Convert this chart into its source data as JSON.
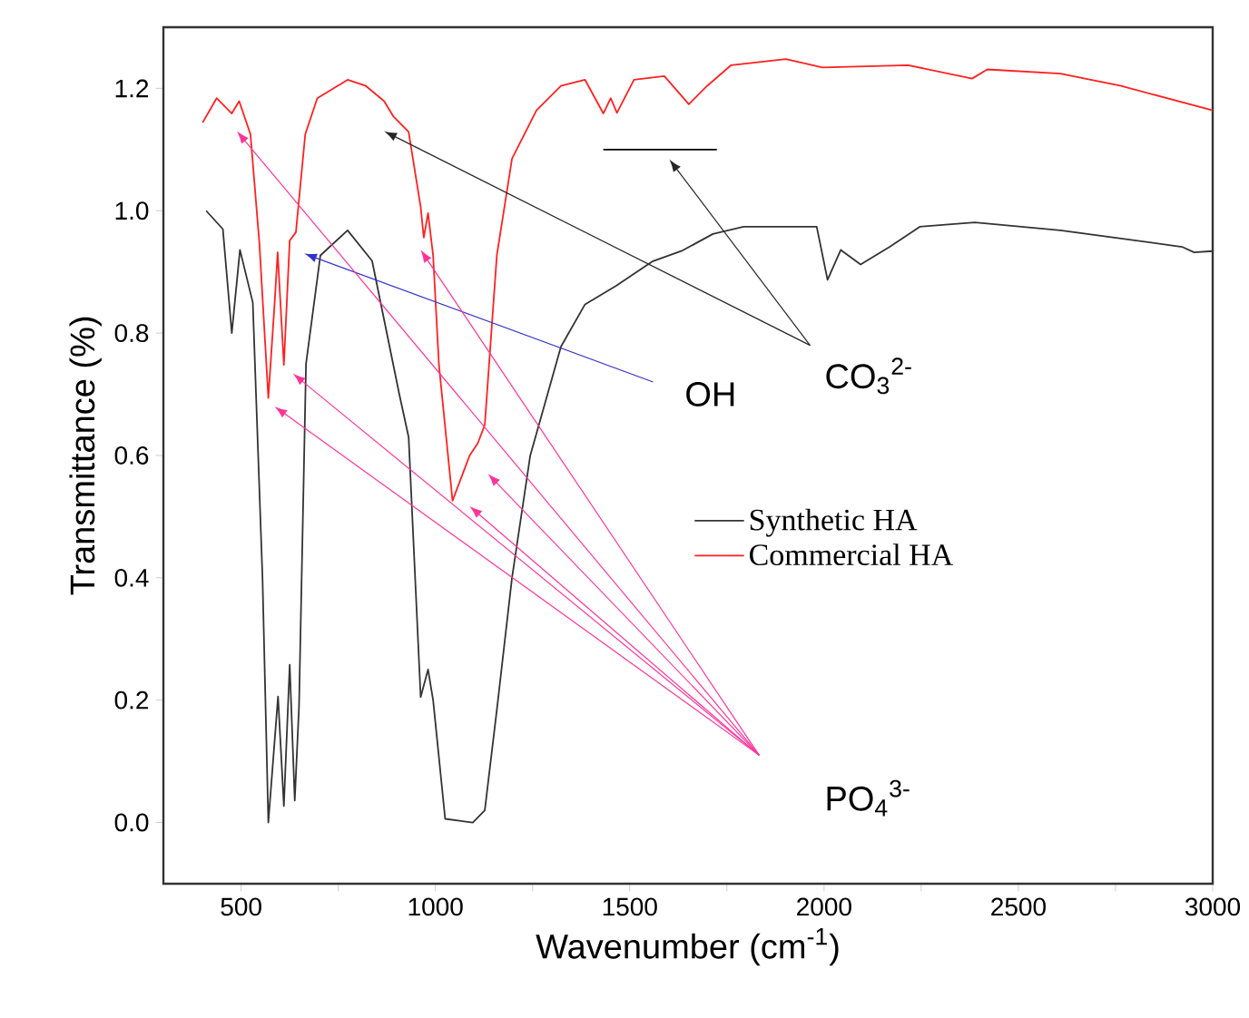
{
  "chart_data": {
    "type": "line",
    "xlabel": "Wavenumber (cm$^{-1}$)",
    "ylabel": "Transmittance (%)",
    "xlim": [
      300,
      3000
    ],
    "ylim": [
      -0.1,
      1.3
    ],
    "xticks": [
      500,
      {
        "value": 750,
        "label": null
      },
      1000,
      {
        "value": 1250,
        "label": null
      },
      1500,
      {
        "value": 1750,
        "label": null
      },
      2000,
      {
        "value": 2250,
        "label": null
      },
      2500,
      {
        "value": 2750,
        "label": null
      },
      3000
    ],
    "yticks": [
      {
        "value": 0,
        "label": "0.0"
      },
      0.2,
      0.4,
      0.6,
      0.8,
      {
        "value": 1.0,
        "label": "1.0"
      },
      1.2
    ],
    "legend": "right",
    "marker": "none",
    "line_style": "solid",
    "annotations": [
      "CO$_{3}$$^{2-}$",
      "OH",
      "PO$_{4}$$^{3-}$"
    ],
    "series": [
      {
        "name": "Synthetic HA",
        "color": "#333333",
        "x": [
          410,
          453,
          476,
          497,
          530,
          555,
          570,
          595,
          610,
          625,
          638,
          649,
          667,
          704,
          774,
          837,
          907,
          931,
          962,
          981,
          994,
          1025,
          1096,
          1127,
          1158,
          1197,
          1244,
          1323,
          1385,
          1464,
          1558,
          1636,
          1714,
          1793,
          1981,
          2009,
          2043,
          2094,
          2169,
          2247,
          2388,
          2608,
          2921,
          2952,
          3000
        ],
        "values": [
          1.0,
          0.97,
          0.8,
          0.936,
          0.85,
          0.4,
          0.0,
          0.206,
          0.027,
          0.258,
          0.036,
          0.19,
          0.75,
          0.927,
          0.968,
          0.918,
          0.7,
          0.63,
          0.205,
          0.25,
          0.2,
          0.006,
          0.0,
          0.02,
          0.184,
          0.4,
          0.6,
          0.778,
          0.847,
          0.877,
          0.917,
          0.935,
          0.962,
          0.974,
          0.974,
          0.887,
          0.936,
          0.912,
          0.941,
          0.974,
          0.981,
          0.968,
          0.941,
          0.932,
          0.934
        ]
      },
      {
        "name": "Commercial HA",
        "color": "#ff2020",
        "x": [
          401,
          437,
          476,
          495,
          524,
          547,
          570,
          586,
          594,
          610,
          625,
          641,
          665,
          696,
          774,
          821,
          868,
          892,
          931,
          962,
          970,
          981,
          994,
          1009,
          1044,
          1088,
          1109,
          1127,
          1158,
          1197,
          1260,
          1323,
          1385,
          1432,
          1451,
          1467,
          1511,
          1589,
          1652,
          1699,
          1761,
          1902,
          1996,
          2216,
          2381,
          2420,
          2608,
          2764,
          3000
        ],
        "values": [
          1.144,
          1.184,
          1.159,
          1.179,
          1.125,
          0.947,
          0.694,
          0.847,
          0.932,
          0.748,
          0.951,
          0.965,
          1.125,
          1.184,
          1.214,
          1.204,
          1.179,
          1.154,
          1.129,
          1.006,
          0.956,
          0.996,
          0.927,
          0.748,
          0.526,
          0.6,
          0.62,
          0.65,
          0.927,
          1.085,
          1.164,
          1.204,
          1.214,
          1.159,
          1.184,
          1.16,
          1.214,
          1.22,
          1.174,
          1.204,
          1.238,
          1.248,
          1.234,
          1.238,
          1.216,
          1.231,
          1.224,
          1.204,
          1.164
        ]
      },
      {
        "color": "#000000",
        "x": [
          1432,
          1724
        ],
        "values": [
          1.1,
          1.1
        ]
      }
    ]
  }
}
